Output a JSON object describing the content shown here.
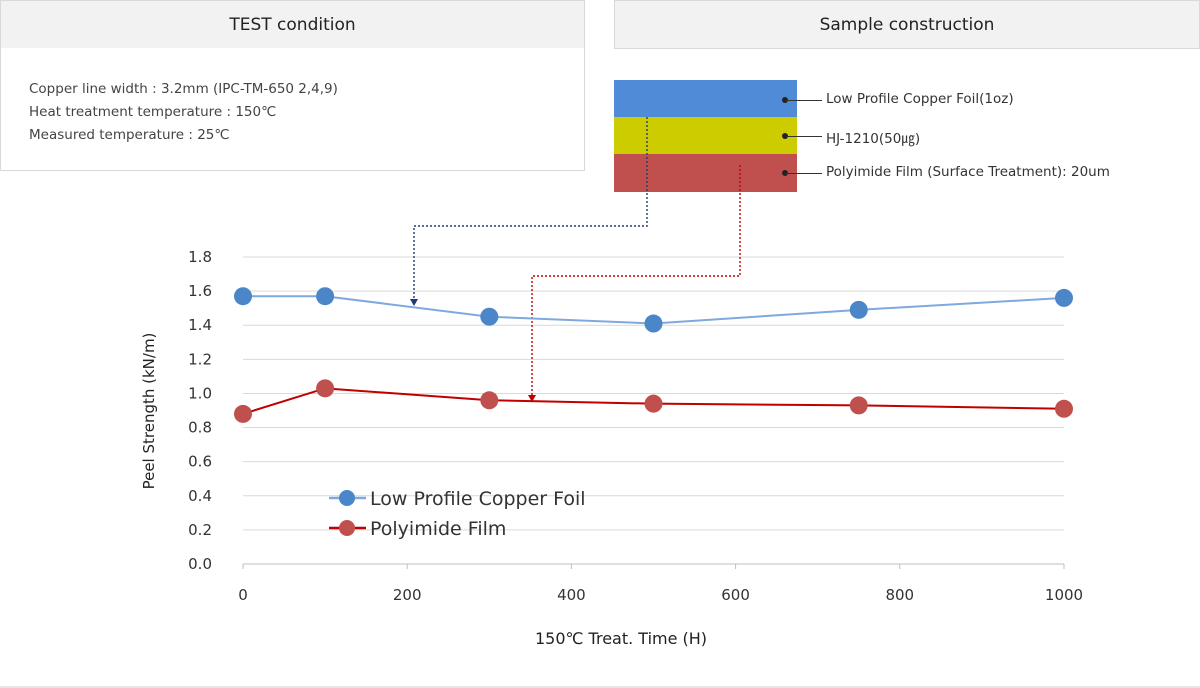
{
  "test_condition": {
    "title": "TEST condition",
    "lines": [
      "Copper line width : 3.2mm (IPC-TM-650 2,4,9)",
      "Heat treatment temperature : 150℃",
      "Measured temperature : 25℃"
    ]
  },
  "sample_construction": {
    "title": "Sample construction",
    "layers": [
      {
        "label": "Low Profile Copper Foil(1oz)",
        "color": "#4f8bd6"
      },
      {
        "label": "HJ-1210(50㎍)",
        "color": "#cccc00"
      },
      {
        "label": "Polyimide Film (Surface Treatment): 20um",
        "color": "#c0504d"
      }
    ]
  },
  "chart_data": {
    "type": "line",
    "xlabel": "150℃ Treat. Time (H)",
    "ylabel": "Peel Strength (kN/m)",
    "xlim": [
      0,
      1000
    ],
    "ylim": [
      0,
      1.8
    ],
    "xticks": [
      "0",
      "200",
      "400",
      "600",
      "800",
      "1000"
    ],
    "yticks": [
      "0.0",
      "0.2",
      "0.4",
      "0.6",
      "0.8",
      "1.0",
      "1.2",
      "1.4",
      "1.6",
      "1.8"
    ],
    "grid": true,
    "legend_position": "bottom-left",
    "x": [
      0,
      100,
      300,
      500,
      750,
      1000
    ],
    "series": [
      {
        "name": "Low Profile Copper Foil",
        "values": [
          1.57,
          1.57,
          1.45,
          1.41,
          1.49,
          1.56
        ],
        "color": "#4a86c8",
        "line_color": "#7fa9de"
      },
      {
        "name": "Polyimide Film",
        "values": [
          0.88,
          1.03,
          0.96,
          0.94,
          0.93,
          0.91
        ],
        "color": "#c0504d",
        "line_color": "#c00000"
      }
    ]
  }
}
